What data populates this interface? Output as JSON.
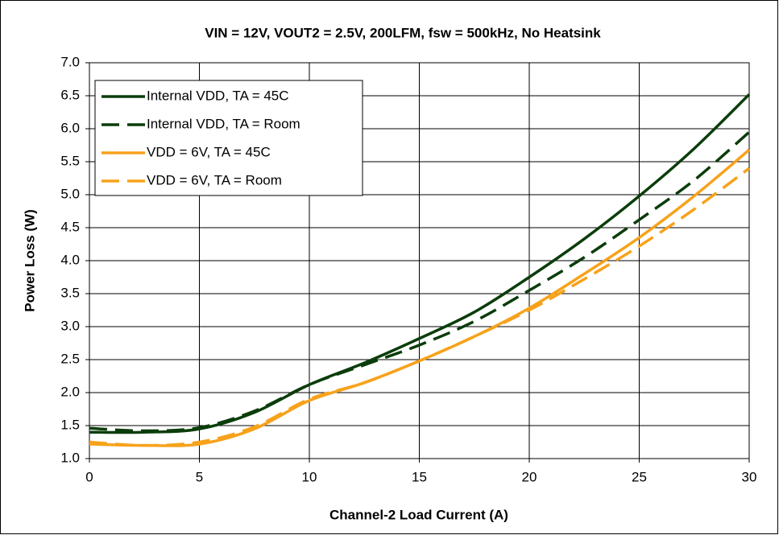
{
  "chart_data": {
    "type": "line",
    "title": "VIN = 12V, VOUT2 = 2.5V, 200LFM, fsw = 500kHz, No Heatsink",
    "x_label": "Channel-2 Load Current (A)",
    "y_label": "Power Loss (W)",
    "x": [
      0,
      2.5,
      5,
      7.5,
      10,
      12.5,
      15,
      17.5,
      20,
      22.5,
      25,
      27.5,
      30
    ],
    "series": [
      {
        "name": "Internal VDD, TA = 45C",
        "color": "#0b3d0b",
        "line_style": "solid",
        "values": [
          1.4,
          1.4,
          1.45,
          1.7,
          2.12,
          2.45,
          2.82,
          3.22,
          3.75,
          4.33,
          4.98,
          5.7,
          6.52
        ]
      },
      {
        "name": "Internal VDD, TA = Room",
        "color": "#0b3d0b",
        "line_style": "dashed",
        "values": [
          1.46,
          1.42,
          1.47,
          1.72,
          2.12,
          2.42,
          2.72,
          3.08,
          3.55,
          4.05,
          4.62,
          5.22,
          5.95
        ]
      },
      {
        "name": "VDD = 6V, TA = 45C",
        "color": "#f7a21b",
        "line_style": "solid",
        "values": [
          1.22,
          1.2,
          1.22,
          1.45,
          1.88,
          2.15,
          2.48,
          2.85,
          3.28,
          3.8,
          4.35,
          4.98,
          5.68
        ]
      },
      {
        "name": "VDD = 6V, TA = Room",
        "color": "#f7a21b",
        "line_style": "dashed",
        "values": [
          1.25,
          1.2,
          1.25,
          1.48,
          1.9,
          2.15,
          2.48,
          2.85,
          3.25,
          3.72,
          4.22,
          4.78,
          5.4
        ]
      }
    ],
    "xlim": [
      0,
      30
    ],
    "xticks": [
      0,
      5,
      10,
      15,
      20,
      25,
      30
    ],
    "ylim": [
      1,
      7
    ],
    "yticks": [
      {
        "value": 1,
        "label": "1.0"
      },
      1.5,
      {
        "value": 2,
        "label": "2.0"
      },
      2.5,
      {
        "value": 3,
        "label": "3.0"
      },
      3.5,
      {
        "value": 4,
        "label": "4.0"
      },
      4.5,
      {
        "value": 5,
        "label": "5.0"
      },
      5.5,
      {
        "value": 6,
        "label": "6.0"
      },
      6.5,
      {
        "value": 7,
        "label": "7.0"
      }
    ],
    "grid": true,
    "legend": "upper left"
  }
}
